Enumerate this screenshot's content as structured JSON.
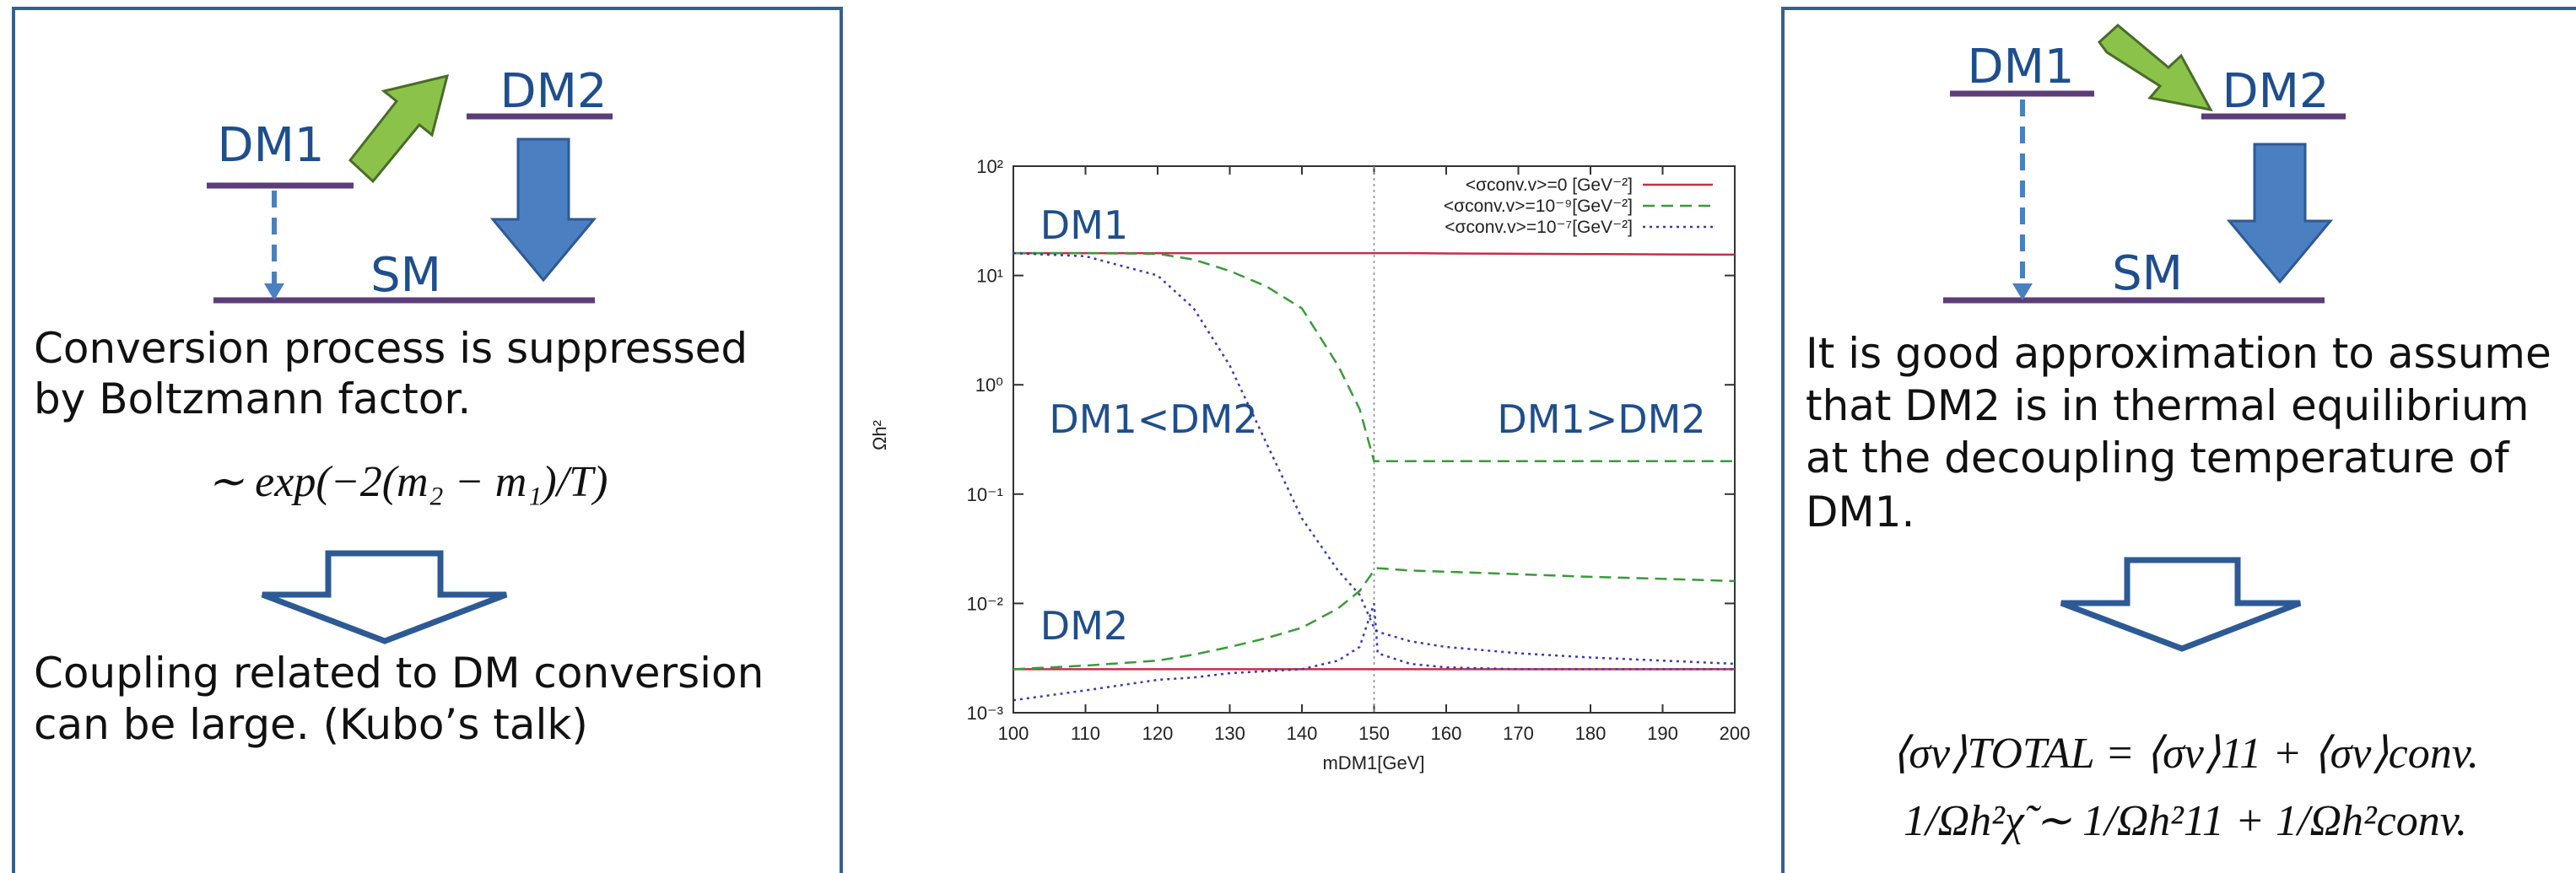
{
  "left_panel": {
    "dm1": "DM1",
    "dm2": "DM2",
    "sm": "SM",
    "text": [
      "Conversion process is suppressed",
      "by Boltzmann factor."
    ],
    "formula": "∼ exp(−2(m₂ − m₁)/T)",
    "conclusion": [
      "Coupling related to DM conversion",
      " can be large. (Kubo’s talk)"
    ]
  },
  "right_panel": {
    "dm1": "DM1",
    "dm2": "DM2",
    "sm": "SM",
    "text": [
      "It is good approximation to assume",
      "that DM2 is in thermal  equilibrium",
      " at the decoupling temperature of",
      "DM1."
    ],
    "formula": [
      "⟨σv⟩TOTAL = ⟨σv⟩11 + ⟨σv⟩conv.",
      "1/Ωh²χ̃ ∼ 1/Ωh²11 + 1/Ωh²conv."
    ]
  },
  "chart_data": {
    "type": "line",
    "log_y": true,
    "x_label": "mDM1[GeV]",
    "y_label": "Ωh²",
    "annotations": [
      "DM1",
      "DM2",
      "DM1<DM2",
      "DM1>DM2"
    ],
    "x": [
      100,
      110,
      120,
      125,
      130,
      135,
      140,
      145,
      148,
      150,
      150.5,
      155,
      160,
      170,
      180,
      190,
      200
    ],
    "vline": 150,
    "xlim": [
      100,
      200
    ],
    "xticks": [
      100,
      110,
      120,
      130,
      140,
      150,
      160,
      170,
      180,
      190,
      200
    ],
    "ylim": [
      0.001,
      100
    ],
    "yticks": [
      {
        "value": 0.001,
        "label": "10⁻³"
      },
      {
        "value": 0.01,
        "label": "10⁻²"
      },
      {
        "value": 0.1,
        "label": "10⁻¹"
      },
      {
        "value": 1,
        "label": "10⁰"
      },
      {
        "value": 10,
        "label": "10¹"
      },
      {
        "value": 100,
        "label": "10²"
      }
    ],
    "series": [
      {
        "name": "<σconv.v>=0 [GeV⁻²]",
        "color": "#c0304a",
        "dash": "none",
        "values": [
          16,
          16,
          16,
          16,
          16,
          16,
          16,
          16,
          16,
          16,
          16,
          16,
          15.9,
          15.8,
          15.7,
          15.6,
          15.5
        ],
        "dm2_values": [
          0.0025,
          0.0025,
          0.0025,
          0.0025,
          0.0025,
          0.0025,
          0.0025,
          0.0025,
          0.0025,
          0.0025,
          0.0025,
          0.0025,
          0.0025,
          0.0025,
          0.0025,
          0.0025,
          0.0025
        ]
      },
      {
        "name": "<σconv.v>=10⁻⁹[GeV⁻²]",
        "color": "#3a9a3a",
        "dash": "14 8",
        "values": [
          16,
          16,
          15.8,
          14,
          11,
          8,
          5,
          1.5,
          0.6,
          0.2,
          0.2,
          0.2,
          0.2,
          0.2,
          0.2,
          0.2,
          0.2
        ],
        "dm2_values": [
          0.0025,
          0.0027,
          0.003,
          0.0034,
          0.004,
          0.0048,
          0.006,
          0.009,
          0.013,
          0.02,
          0.021,
          0.02,
          0.0195,
          0.0185,
          0.0175,
          0.0168,
          0.016
        ]
      },
      {
        "name": "<σconv.v>=10⁻⁷[GeV⁻²]",
        "color": "#3a3aa8",
        "dash": "3 5",
        "values": [
          16,
          15,
          10,
          5,
          1.5,
          0.3,
          0.06,
          0.02,
          0.012,
          0.006,
          0.0055,
          0.0045,
          0.004,
          0.0035,
          0.0032,
          0.003,
          0.0028
        ],
        "dm2_values": [
          0.0013,
          0.0016,
          0.002,
          0.0021,
          0.0023,
          0.0024,
          0.0025,
          0.003,
          0.004,
          0.01,
          0.0035,
          0.0028,
          0.0026,
          0.0025,
          0.0025,
          0.0025,
          0.0025
        ]
      }
    ]
  }
}
